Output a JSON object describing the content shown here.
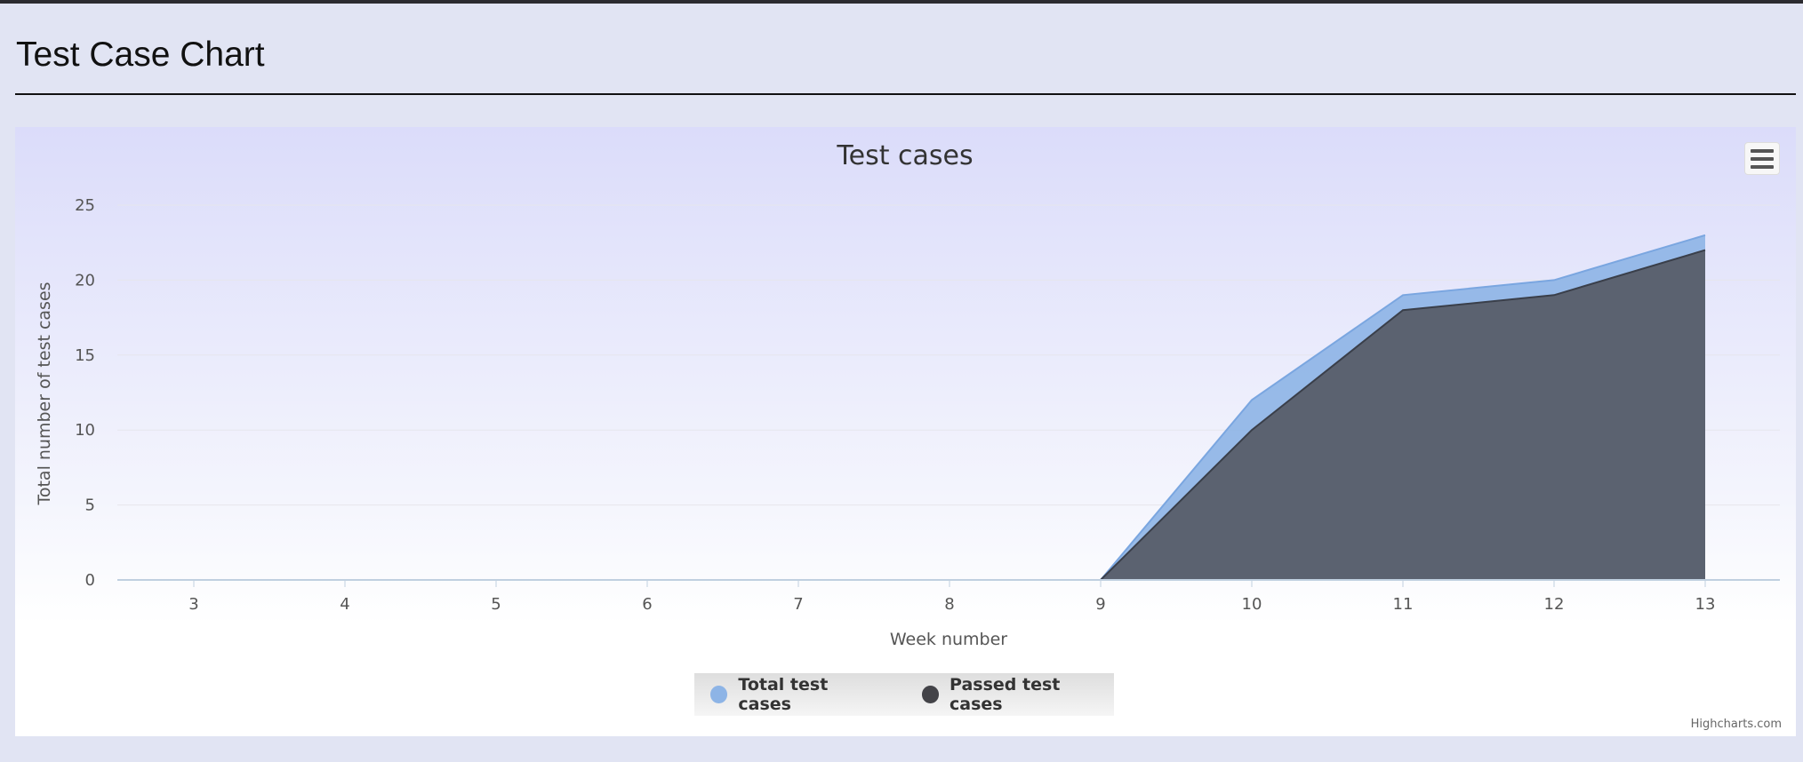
{
  "page": {
    "title": "Test Case Chart"
  },
  "chart": {
    "credits": "Highcharts.com",
    "legend": [
      {
        "label": "Total test cases",
        "color": "#8db4e6"
      },
      {
        "label": "Passed test cases",
        "color": "#434348"
      }
    ]
  },
  "chart_data": {
    "type": "area",
    "title": "Test cases",
    "xlabel": "Week number",
    "ylabel": "Total number of test cases",
    "categories": [
      "3",
      "4",
      "5",
      "6",
      "7",
      "8",
      "9",
      "10",
      "11",
      "12",
      "13"
    ],
    "x": [
      3,
      4,
      5,
      6,
      7,
      8,
      9,
      10,
      11,
      12,
      13
    ],
    "y_ticks": [
      0,
      5,
      10,
      15,
      20,
      25
    ],
    "ylim": [
      0,
      25
    ],
    "grid": true,
    "legend_position": "bottom-center",
    "series": [
      {
        "name": "Total test cases",
        "color": "#8db4e6",
        "values": [
          0,
          0,
          0,
          0,
          0,
          0,
          0,
          12,
          19,
          20,
          23
        ]
      },
      {
        "name": "Passed test cases",
        "color": "#5b6270",
        "values": [
          0,
          0,
          0,
          0,
          0,
          0,
          0,
          10,
          18,
          19,
          22
        ]
      }
    ]
  }
}
